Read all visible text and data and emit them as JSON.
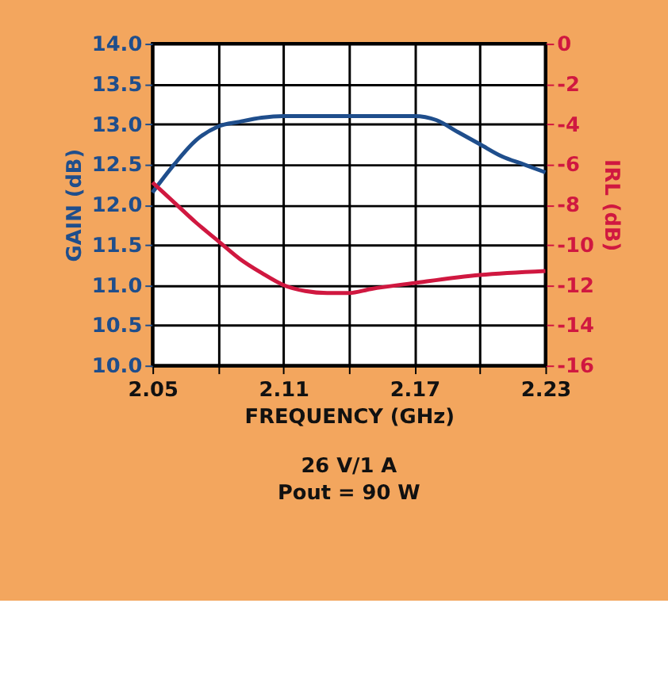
{
  "chart_data": {
    "type": "line",
    "xlabel": "FREQUENCY (GHz)",
    "ylabel": "GAIN (dB)",
    "y2label": "IRL (dB)",
    "series": [
      {
        "name": null,
        "color": "#1f4e8c",
        "axis": "y",
        "x": [
          2.05,
          2.06,
          2.07,
          2.08,
          2.09,
          2.1,
          2.11,
          2.14,
          2.17,
          2.18,
          2.19,
          2.2,
          2.21,
          2.22,
          2.23
        ],
        "values": [
          12.15,
          12.5,
          12.8,
          12.97,
          13.03,
          13.08,
          13.1,
          13.1,
          13.1,
          13.05,
          12.9,
          12.75,
          12.6,
          12.5,
          12.4
        ]
      },
      {
        "name": null,
        "color": "#d01840",
        "axis": "y2",
        "x": [
          2.05,
          2.06,
          2.07,
          2.08,
          2.09,
          2.1,
          2.11,
          2.12,
          2.13,
          2.14,
          2.15,
          2.17,
          2.2,
          2.23
        ],
        "values": [
          -6.9,
          -7.9,
          -8.9,
          -9.8,
          -10.7,
          -11.4,
          -12.0,
          -12.3,
          -12.4,
          -12.4,
          -12.2,
          -11.9,
          -11.5,
          -11.3
        ]
      }
    ],
    "xlim": [
      2.05,
      2.23
    ],
    "xticks": [
      2.05,
      {
        "value": 2.08,
        "label": null
      },
      2.11,
      {
        "value": 2.14,
        "label": null
      },
      2.17,
      {
        "value": 2.2,
        "label": null
      },
      2.23
    ],
    "ylim": [
      10.0,
      14.0
    ],
    "yticks": [
      {
        "value": 10,
        "label": "10.0"
      },
      10.5,
      {
        "value": 11,
        "label": "11.0"
      },
      11.5,
      {
        "value": 12,
        "label": "12.0"
      },
      12.5,
      {
        "value": 13,
        "label": "13.0"
      },
      13.5,
      {
        "value": 14,
        "label": "14.0"
      }
    ],
    "y2lim": [
      -16,
      0
    ],
    "y2ticks": [
      -16,
      -14,
      -12,
      -10,
      -8,
      -6,
      -4,
      -2,
      0
    ],
    "grid": true,
    "annotations": [
      "26 V/1 A",
      "Pout = 90 W"
    ]
  }
}
